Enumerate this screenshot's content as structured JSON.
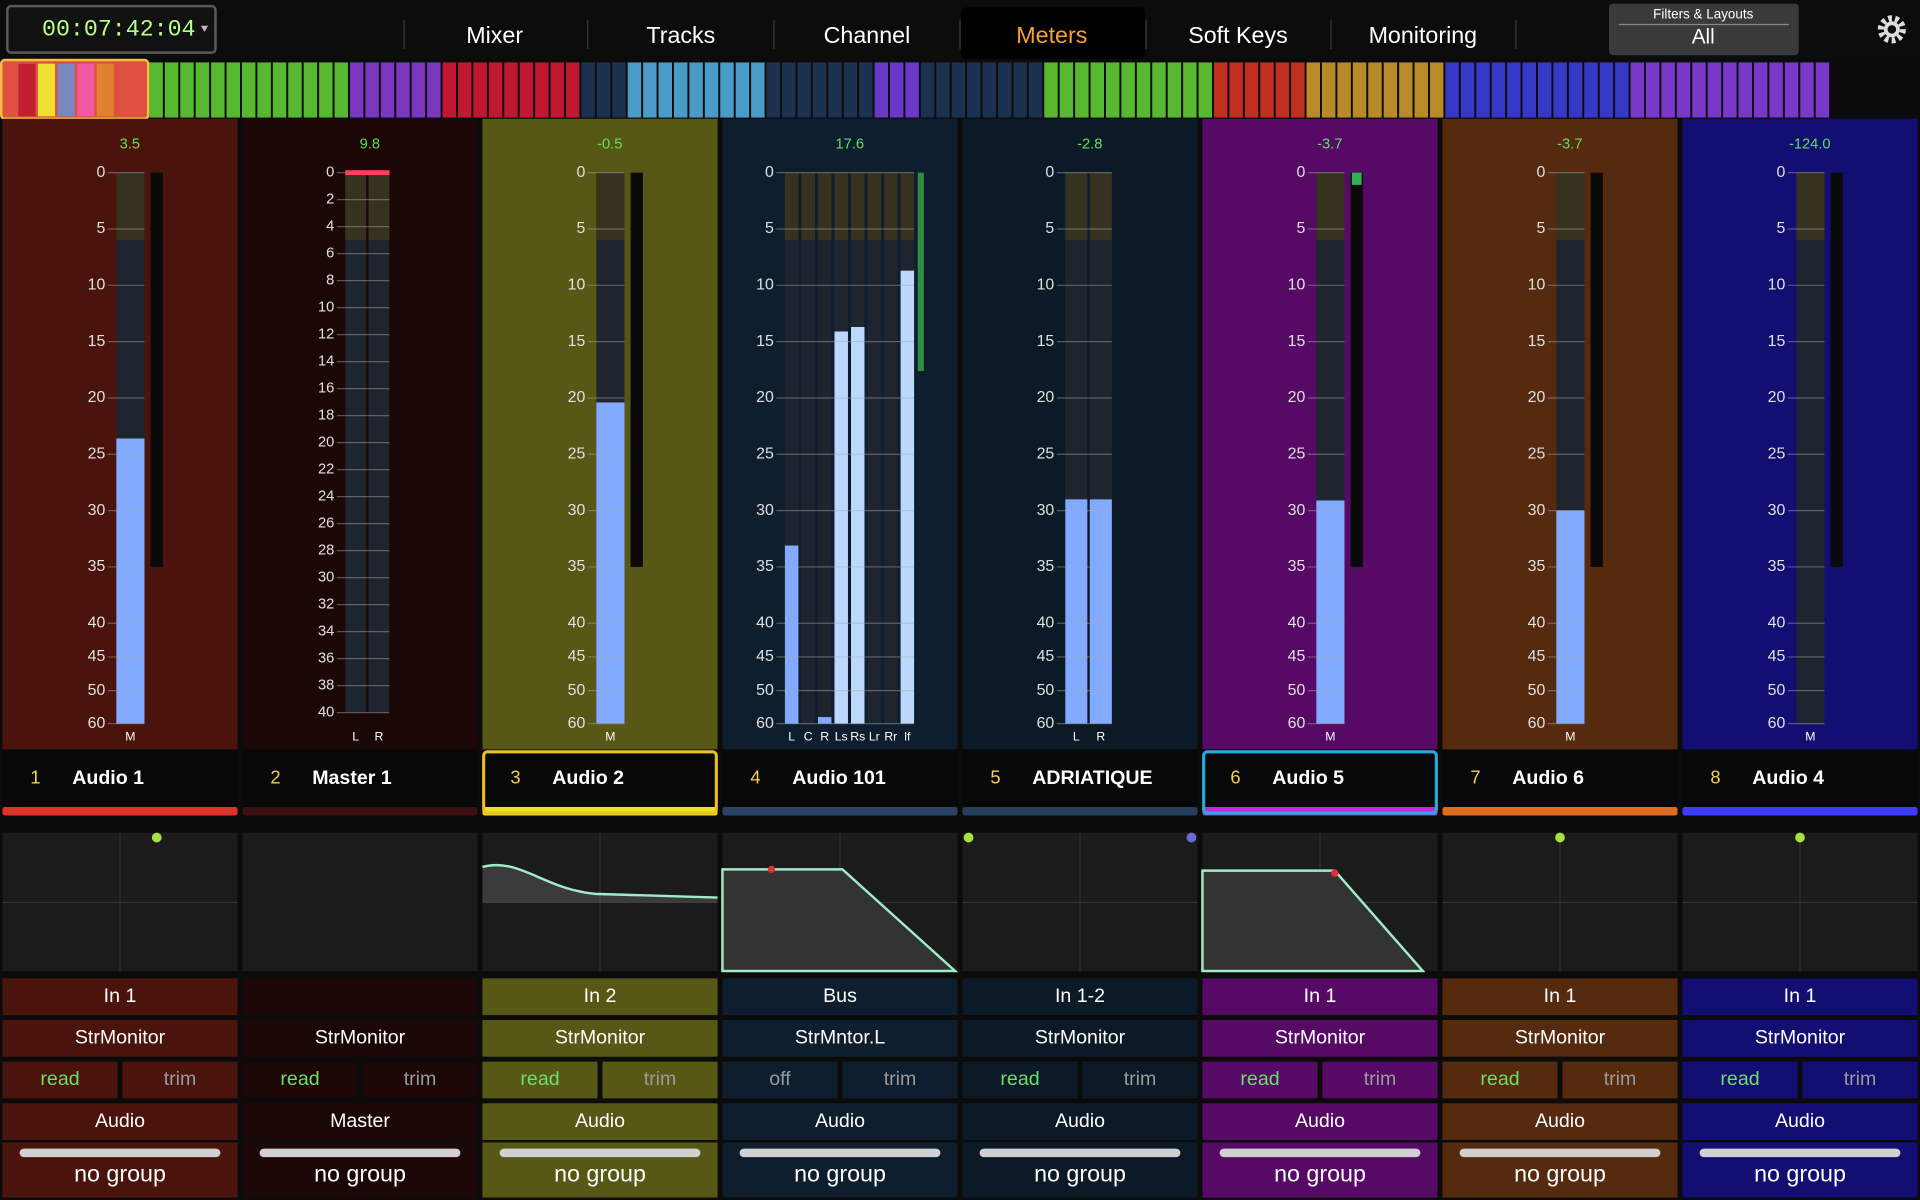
{
  "timecode": "00:07:42:04",
  "tabs": [
    "Mixer",
    "Tracks",
    "Channel",
    "Meters",
    "Soft Keys",
    "Monitoring"
  ],
  "active_tab": 3,
  "filters": {
    "label": "Filters & Layouts",
    "value": "All"
  },
  "scales": {
    "main": [
      0,
      5,
      10,
      15,
      20,
      25,
      30,
      35,
      40,
      45,
      50,
      60
    ],
    "master": [
      0,
      2,
      4,
      6,
      8,
      10,
      12,
      14,
      16,
      18,
      20,
      22,
      24,
      26,
      28,
      30,
      32,
      34,
      36,
      38,
      40
    ]
  },
  "channels": [
    {
      "number": "1",
      "name": "Audio 1",
      "peak": "3.5",
      "color": "#4a140c",
      "accent": "#e0302a",
      "scale": "main",
      "meters": [
        {
          "label": "M",
          "level": 23.6
        }
      ],
      "input": "In 1",
      "monitor": "StrMonitor",
      "automation": "read",
      "trim": "trim",
      "type": "Audio",
      "group": "no group"
    },
    {
      "number": "2",
      "name": "Master 1",
      "peak": "9.8",
      "color": "#1c0707",
      "accent": "#3c1012",
      "scale": "master",
      "meters": [
        {
          "label": "L"
        },
        {
          "label": "R"
        }
      ],
      "monitor": "StrMonitor",
      "automation": "read",
      "trim": "trim",
      "type": "Master",
      "group": "no group"
    },
    {
      "number": "3",
      "name": "Audio 2",
      "peak": "-0.5",
      "color": "#585816",
      "accent": "#e6e624",
      "outline": "#f0c020",
      "scale": "main",
      "meters": [
        {
          "label": "M",
          "level": 20.4
        }
      ],
      "input": "In 2",
      "monitor": "StrMonitor",
      "automation": "read",
      "trim": "trim",
      "type": "Audio",
      "group": "no group"
    },
    {
      "number": "4",
      "name": "Audio 101",
      "peak": "17.6",
      "color": "#0f1e2e",
      "accent": "#2a4466",
      "scale": "main",
      "meters": [
        {
          "label": "L",
          "level": 33.1
        },
        {
          "label": "C"
        },
        {
          "label": "R",
          "level": 58
        },
        {
          "label": "Ls",
          "level": 14.1
        },
        {
          "label": "Rs",
          "level": 13.7
        },
        {
          "label": "Lr"
        },
        {
          "label": "Rr"
        },
        {
          "label": "lf",
          "level": 8.7
        }
      ],
      "input": "Bus",
      "monitor": "StrMntor.L",
      "automation": "off",
      "trim": "trim",
      "type": "Audio",
      "group": "no group"
    },
    {
      "number": "5",
      "name": "ADRIATIQUE",
      "peak": "-2.8",
      "color": "#0c1a28",
      "accent": "#24405e",
      "scale": "main",
      "meters": [
        {
          "label": "L",
          "level": 29
        },
        {
          "label": "R",
          "level": 29
        }
      ],
      "input": "In 1-2",
      "monitor": "StrMonitor",
      "automation": "read",
      "trim": "trim",
      "type": "Audio",
      "group": "no group"
    },
    {
      "number": "6",
      "name": "Audio 5",
      "peak": "-3.7",
      "color": "#560a66",
      "accent": "#d020e0",
      "outline": "#20b0e0",
      "scale": "main",
      "meters": [
        {
          "label": "M",
          "level": 29.1
        }
      ],
      "input": "In 1",
      "monitor": "StrMonitor",
      "automation": "read",
      "trim": "trim",
      "type": "Audio",
      "group": "no group"
    },
    {
      "number": "7",
      "name": "Audio 6",
      "peak": "-3.7",
      "color": "#562a0e",
      "accent": "#e06a20",
      "scale": "main",
      "meters": [
        {
          "label": "M",
          "level": 30
        }
      ],
      "input": "In 1",
      "monitor": "StrMonitor",
      "automation": "read",
      "trim": "trim",
      "type": "Audio",
      "group": "no group"
    },
    {
      "number": "8",
      "name": "Audio 4",
      "peak": "-124.0",
      "color": "#120e72",
      "accent": "#3c3cff",
      "scale": "main",
      "meters": [
        {
          "label": "M"
        }
      ],
      "input": "In 1",
      "monitor": "StrMonitor",
      "automation": "read",
      "trim": "trim",
      "type": "Audio",
      "group": "no group"
    }
  ]
}
